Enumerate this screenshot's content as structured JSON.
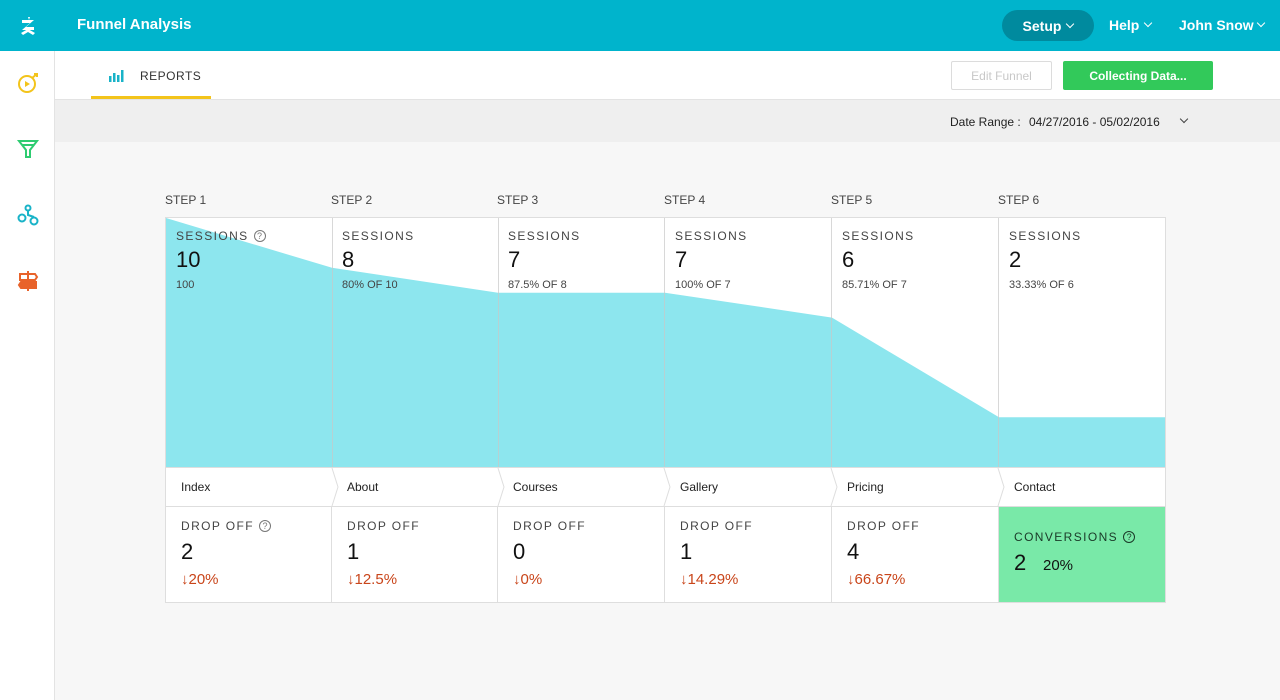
{
  "app": {
    "title": "Funnel Analysis",
    "accent_color": "#00b4cc",
    "logo_icon": "app-logo-icon"
  },
  "topbar": {
    "setup_label": "Setup",
    "help_label": "Help",
    "user_name": "John Snow"
  },
  "sidebar": {
    "items": [
      {
        "icon": "target-icon",
        "color": "#f3c41b"
      },
      {
        "icon": "funnel-icon",
        "color": "#2ecc71"
      },
      {
        "icon": "flow-icon",
        "color": "#19b3c8"
      },
      {
        "icon": "signpost-icon",
        "color": "#e8632b"
      }
    ]
  },
  "subheader": {
    "tab_reports": "REPORTS",
    "edit_funnel": "Edit Funnel",
    "collecting": "Collecting Data..."
  },
  "date_range": {
    "label": "Date Range :",
    "value": "04/27/2016 - 05/02/2016"
  },
  "funnel": {
    "fill_color": "#8de6ee",
    "steps": [
      {
        "step": "STEP 1",
        "sessions_label": "SESSIONS",
        "sessions": 10,
        "sessions_text": "10",
        "sub": "100",
        "page": "Index",
        "drop_label": "DROP OFF",
        "drop": "2",
        "drop_pct": "20%"
      },
      {
        "step": "STEP 2",
        "sessions_label": "SESSIONS",
        "sessions": 8,
        "sessions_text": "8",
        "sub": "80% OF 10",
        "page": "About",
        "drop_label": "DROP OFF",
        "drop": "1",
        "drop_pct": "12.5%"
      },
      {
        "step": "STEP 3",
        "sessions_label": "SESSIONS",
        "sessions": 7,
        "sessions_text": "7",
        "sub": "87.5% OF 8",
        "page": "Courses",
        "drop_label": "DROP OFF",
        "drop": "0",
        "drop_pct": "0%"
      },
      {
        "step": "STEP 4",
        "sessions_label": "SESSIONS",
        "sessions": 7,
        "sessions_text": "7",
        "sub": "100% OF 7",
        "page": "Gallery",
        "drop_label": "DROP OFF",
        "drop": "1",
        "drop_pct": "14.29%"
      },
      {
        "step": "STEP 5",
        "sessions_label": "SESSIONS",
        "sessions": 6,
        "sessions_text": "6",
        "sub": "85.71% OF 7",
        "page": "Pricing",
        "drop_label": "DROP OFF",
        "drop": "4",
        "drop_pct": "66.67%"
      },
      {
        "step": "STEP 6",
        "sessions_label": "SESSIONS",
        "sessions": 2,
        "sessions_text": "2",
        "sub": "33.33% OF 6",
        "page": "Contact"
      }
    ],
    "conversions": {
      "label": "CONVERSIONS",
      "value": "2",
      "pct": "20%",
      "color": "#79e9a8"
    },
    "drop_color": "#c9451a"
  }
}
